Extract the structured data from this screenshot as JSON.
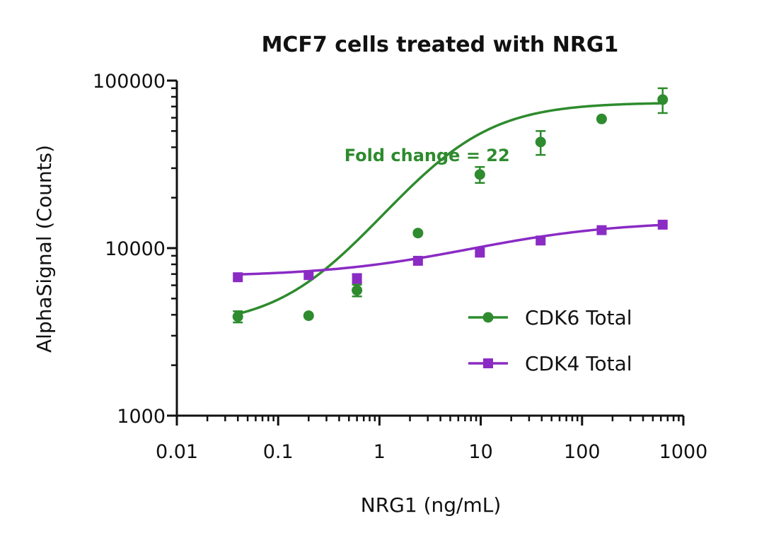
{
  "chart_data": {
    "type": "line",
    "title": "MCF7 cells treated with NRG1",
    "xlabel": "NRG1 (ng/mL)",
    "ylabel": "AlphaSignal (Counts)",
    "x_scale": "log",
    "y_scale": "log",
    "xlim": [
      0.01,
      1000
    ],
    "ylim": [
      1000,
      100000
    ],
    "x_ticks": [
      {
        "value": 0.01,
        "label": "0.01"
      },
      {
        "value": 0.1,
        "label": "0.1"
      },
      {
        "value": 1,
        "label": "1"
      },
      {
        "value": 10,
        "label": "10"
      },
      {
        "value": 100,
        "label": "100"
      },
      {
        "value": 1000,
        "label": "1000"
      }
    ],
    "y_ticks": [
      {
        "value": 1000,
        "label": "1000"
      },
      {
        "value": 10000,
        "label": "10000"
      },
      {
        "value": 100000,
        "label": "100000"
      }
    ],
    "annotation": {
      "text": "Fold change = 22",
      "x": 0.45,
      "y": 33000,
      "color": "#2e8b2e"
    },
    "legend_position": "bottom-right",
    "series": [
      {
        "name": "CDK6 Total",
        "color": "#2e8b2e",
        "marker": "circle",
        "x": [
          0.04,
          0.2,
          0.6,
          2.4,
          9.8,
          39,
          156,
          625
        ],
        "y": [
          3900,
          3950,
          5600,
          12300,
          27500,
          43000,
          59000,
          77000
        ],
        "err": [
          300,
          0,
          450,
          0,
          3000,
          7000,
          0,
          13000
        ],
        "fit": {
          "bottom": 3400,
          "top": 74000,
          "ec50": 5.5,
          "hill": 0.95
        }
      },
      {
        "name": "CDK4 Total",
        "color": "#8a2bc4",
        "marker": "square",
        "x": [
          0.04,
          0.2,
          0.6,
          2.4,
          9.8,
          39,
          156,
          625
        ],
        "y": [
          6700,
          6900,
          6600,
          8400,
          9400,
          11100,
          12800,
          13800
        ],
        "err": [
          0,
          0,
          400,
          0,
          0,
          0,
          0,
          0
        ],
        "fit": {
          "bottom": 6750,
          "top": 14500,
          "ec50": 15,
          "hill": 0.6
        }
      }
    ]
  }
}
